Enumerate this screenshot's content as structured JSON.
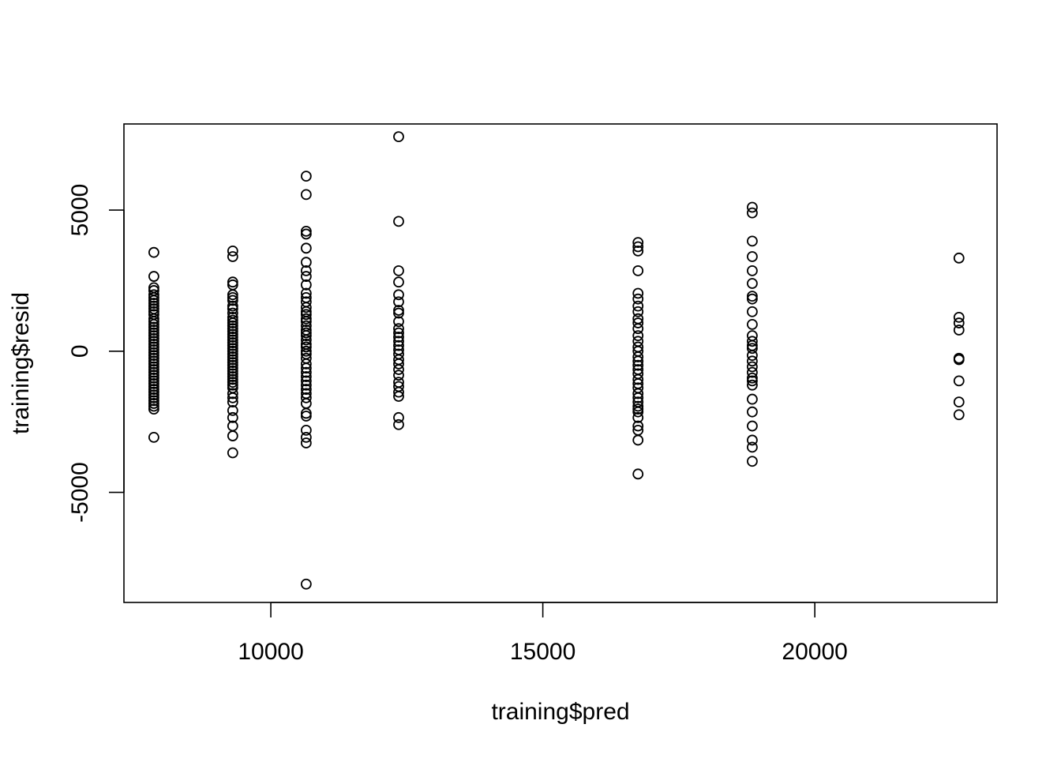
{
  "chart_data": {
    "type": "scatter",
    "title": "",
    "xlabel": "training$pred",
    "ylabel": "training$resid",
    "xlim": [
      7300,
      23350
    ],
    "ylim": [
      -8900,
      8050
    ],
    "x_ticks": [
      10000,
      15000,
      20000
    ],
    "y_ticks": [
      -5000,
      0,
      5000
    ],
    "x_tick_labels": [
      "10000",
      "15000",
      "20000"
    ],
    "y_tick_labels": [
      "-5000",
      "0",
      "5000"
    ],
    "grid": false,
    "legend": "none",
    "marker": "open-circle",
    "point_color": "#000000",
    "groups": [
      {
        "x": 7850,
        "y": [
          3500,
          2650,
          2250,
          2150,
          2000,
          1900,
          1800,
          1700,
          1600,
          1500,
          1400,
          1300,
          1150,
          1050,
          950,
          850,
          750,
          650,
          550,
          450,
          350,
          250,
          150,
          50,
          -50,
          -150,
          -250,
          -350,
          -450,
          -550,
          -650,
          -750,
          -850,
          -950,
          -1050,
          -1150,
          -1250,
          -1350,
          -1450,
          -1550,
          -1650,
          -1750,
          -1850,
          -1950,
          -2050,
          -3050
        ]
      },
      {
        "x": 9300,
        "y": [
          3550,
          3350,
          2450,
          2350,
          2000,
          1900,
          1800,
          1600,
          1500,
          1350,
          1200,
          1100,
          1000,
          900,
          800,
          700,
          600,
          500,
          400,
          300,
          200,
          100,
          0,
          -100,
          -200,
          -300,
          -400,
          -500,
          -600,
          -700,
          -800,
          -900,
          -1000,
          -1100,
          -1200,
          -1300,
          -1500,
          -1650,
          -1800,
          -2100,
          -2350,
          -2650,
          -3000,
          -3600
        ]
      },
      {
        "x": 10650,
        "y": [
          6200,
          5550,
          4250,
          4150,
          3650,
          3150,
          2850,
          2650,
          2350,
          2050,
          1900,
          1750,
          1550,
          1400,
          1300,
          1150,
          1050,
          900,
          750,
          650,
          550,
          400,
          250,
          150,
          0,
          -100,
          -250,
          -450,
          -600,
          -750,
          -900,
          -1050,
          -1200,
          -1350,
          -1500,
          -1650,
          -1850,
          -2200,
          -2300,
          -2800,
          -3050,
          -3250,
          -8250
        ]
      },
      {
        "x": 12350,
        "y": [
          7600,
          4600,
          2850,
          2450,
          2000,
          1750,
          1450,
          1350,
          1050,
          800,
          650,
          500,
          350,
          200,
          50,
          -100,
          -300,
          -450,
          -650,
          -850,
          -1100,
          -1250,
          -1450,
          -1600,
          -2350,
          -2600
        ]
      },
      {
        "x": 16750,
        "y": [
          3850,
          3700,
          3550,
          2850,
          2050,
          1850,
          1600,
          1400,
          1150,
          1000,
          800,
          550,
          350,
          150,
          0,
          -200,
          -350,
          -500,
          -650,
          -800,
          -1000,
          -1150,
          -1300,
          -1500,
          -1650,
          -1800,
          -1950,
          -2050,
          -2150,
          -2350,
          -2650,
          -2800,
          -3150,
          -4350
        ]
      },
      {
        "x": 18850,
        "y": [
          5100,
          4900,
          3900,
          3350,
          2850,
          2400,
          1950,
          1850,
          1400,
          950,
          550,
          350,
          200,
          100,
          -150,
          -350,
          -550,
          -750,
          -950,
          -1050,
          -1200,
          -1700,
          -2150,
          -2650,
          -3150,
          -3400,
          -3900
        ]
      },
      {
        "x": 22650,
        "y": [
          3300,
          1200,
          1000,
          750,
          -250,
          -300,
          -1050,
          -1800,
          -2250
        ]
      }
    ]
  }
}
